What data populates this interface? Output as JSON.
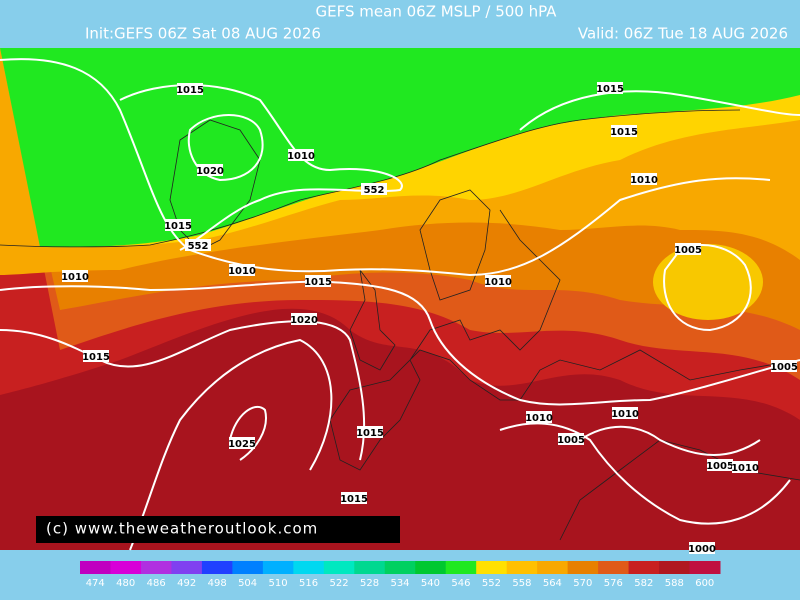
{
  "header": {
    "title": "GEFS mean 06Z MSLP / 500 hPA",
    "init": "Init:GEFS 06Z Sat 08 AUG 2026",
    "valid": "Valid: 06Z Tue 18 AUG 2026"
  },
  "isobar_labels": [
    1015,
    1020,
    1010,
    552,
    1015,
    552,
    1010,
    1010,
    1015,
    1020,
    1015,
    1015,
    1010,
    1005,
    1010,
    1015,
    1005,
    1025,
    1015,
    1010,
    1010,
    1005,
    1005,
    1010,
    1015,
    1000
  ],
  "copyright": "(c) www.theweatheroutlook.com",
  "legend": [
    {
      "label": 474,
      "color": "#c000c0"
    },
    {
      "label": 480,
      "color": "#d800d8"
    },
    {
      "label": 486,
      "color": "#b030e0"
    },
    {
      "label": 492,
      "color": "#8040f0"
    },
    {
      "label": 498,
      "color": "#2040ff"
    },
    {
      "label": 504,
      "color": "#0080ff"
    },
    {
      "label": 510,
      "color": "#00b0ff"
    },
    {
      "label": 516,
      "color": "#00d8f0"
    },
    {
      "label": 522,
      "color": "#00e8c0"
    },
    {
      "label": 528,
      "color": "#00d890"
    },
    {
      "label": 534,
      "color": "#00d060"
    },
    {
      "label": 540,
      "color": "#00c830"
    },
    {
      "label": 546,
      "color": "#20e820"
    },
    {
      "label": 552,
      "color": "#ffe000"
    },
    {
      "label": 558,
      "color": "#ffc000"
    },
    {
      "label": 564,
      "color": "#f8a800"
    },
    {
      "label": 570,
      "color": "#e88000"
    },
    {
      "label": 576,
      "color": "#e05a18"
    },
    {
      "label": 582,
      "color": "#c82020"
    },
    {
      "label": 588,
      "color": "#b01820"
    },
    {
      "label": 600,
      "color": "#c01040"
    }
  ]
}
